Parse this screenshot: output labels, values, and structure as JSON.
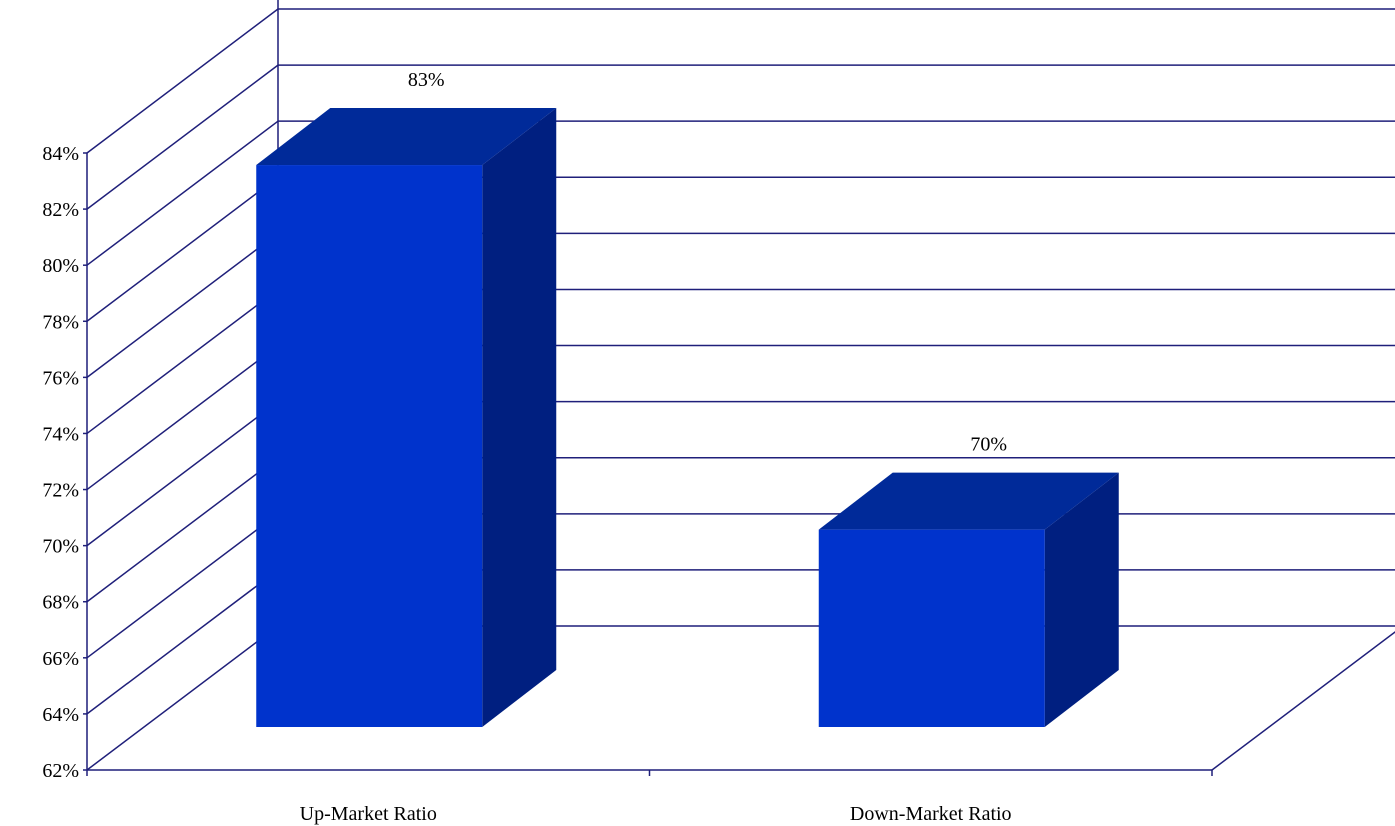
{
  "chart_data": {
    "type": "bar",
    "categories": [
      "Up-Market Ratio",
      "Down-Market Ratio"
    ],
    "values": [
      83,
      70
    ],
    "data_labels": [
      "83%",
      "70%"
    ],
    "ylim": [
      62,
      84
    ],
    "yticks": [
      "62%",
      "64%",
      "66%",
      "68%",
      "70%",
      "72%",
      "74%",
      "76%",
      "78%",
      "80%",
      "82%",
      "84%"
    ],
    "grid": true,
    "three_d": true,
    "colors": {
      "bar_front": "#0033CC",
      "bar_top": "#002A99",
      "bar_side": "#001F80",
      "grid": "#1F1F7A"
    }
  }
}
